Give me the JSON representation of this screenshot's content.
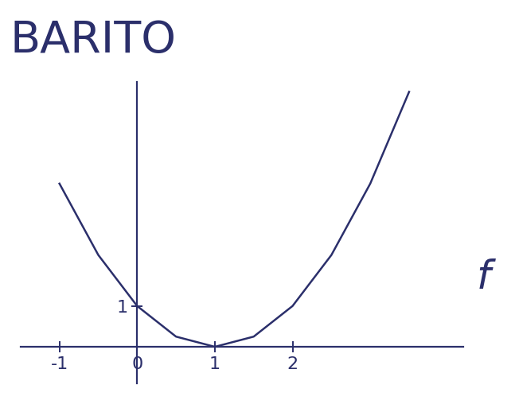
{
  "chart_data": {
    "type": "line",
    "title": "BARITO",
    "x": [
      -1,
      -0.5,
      0,
      0.5,
      1,
      1.5,
      2,
      2.5,
      3,
      3.5
    ],
    "values": [
      4,
      2.25,
      1,
      0.25,
      0,
      0.25,
      1,
      2.25,
      4,
      6.25
    ],
    "color": "#2b2f6b",
    "xlim": [
      -1.5,
      4.2
    ],
    "ylim": [
      -0.9,
      6.5
    ],
    "xticks": [
      -1,
      0,
      1,
      2
    ],
    "yticks": [
      1
    ],
    "annotations": [
      {
        "text": "f"
      }
    ],
    "grid": false
  }
}
